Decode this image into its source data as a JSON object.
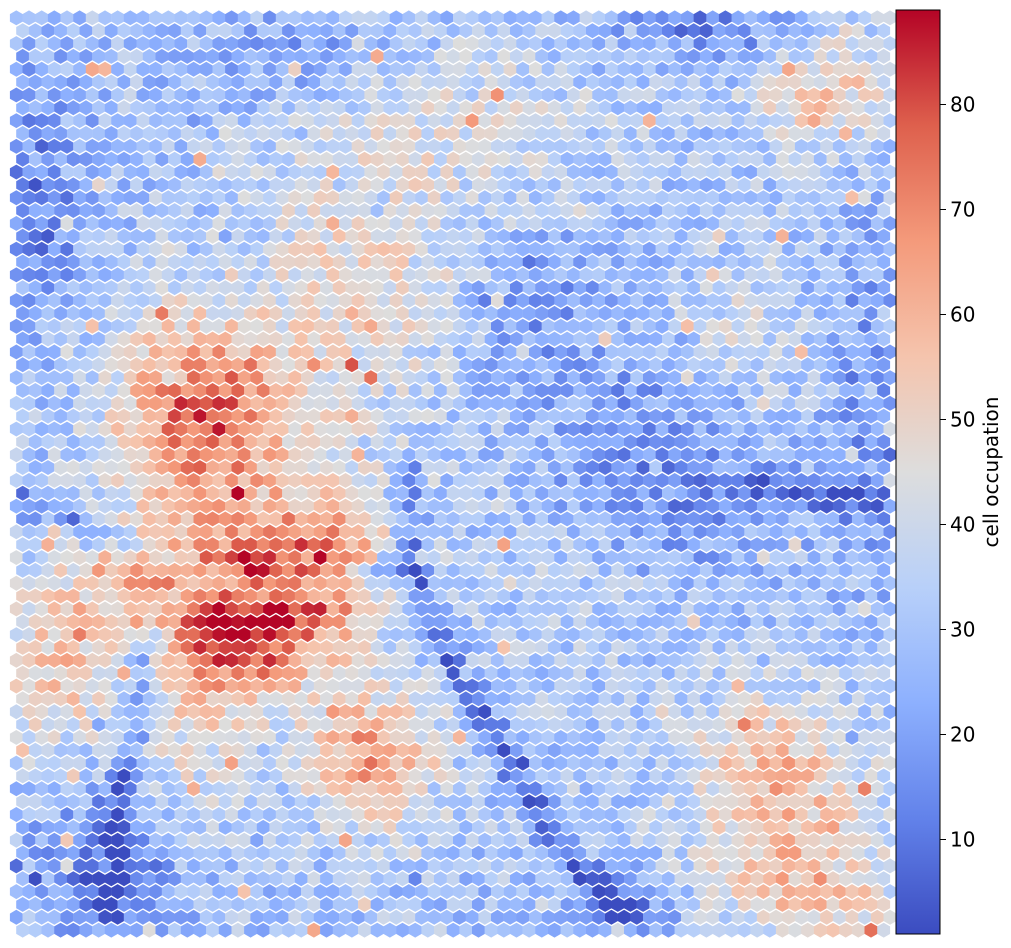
{
  "chart_data": {
    "type": "heatmap",
    "subtype": "hexagonal self-organizing map",
    "colormap": "coolwarm",
    "title": "",
    "xlabel": "",
    "ylabel": "",
    "grid": false,
    "legend": "none",
    "colorbar": {
      "label": "cell occupation",
      "ticks": [
        "10",
        "20",
        "30",
        "40",
        "50",
        "60",
        "70",
        "80"
      ],
      "range": [
        1,
        89
      ],
      "position": "right"
    },
    "grid_shape": {
      "rows": 72,
      "cols": 70
    },
    "hotspots": [
      {
        "cx": 0.22,
        "cy": 0.44,
        "sx": 0.07,
        "sy": 0.08,
        "v": 48
      },
      {
        "cx": 0.26,
        "cy": 0.66,
        "sx": 0.06,
        "sy": 0.06,
        "v": 58
      },
      {
        "cx": 0.36,
        "cy": 0.6,
        "sx": 0.05,
        "sy": 0.06,
        "v": 40
      },
      {
        "cx": 0.41,
        "cy": 0.81,
        "sx": 0.05,
        "sy": 0.05,
        "v": 38
      },
      {
        "cx": 0.15,
        "cy": 0.6,
        "sx": 0.05,
        "sy": 0.03,
        "v": 28
      },
      {
        "cx": 0.06,
        "cy": 0.7,
        "sx": 0.05,
        "sy": 0.07,
        "v": 25
      },
      {
        "cx": 0.4,
        "cy": 0.28,
        "sx": 0.08,
        "sy": 0.12,
        "v": 18
      },
      {
        "cx": 0.87,
        "cy": 0.84,
        "sx": 0.07,
        "sy": 0.07,
        "v": 30
      },
      {
        "cx": 0.93,
        "cy": 0.08,
        "sx": 0.06,
        "sy": 0.05,
        "v": 24
      },
      {
        "cx": 0.92,
        "cy": 0.96,
        "sx": 0.08,
        "sy": 0.04,
        "v": 20
      },
      {
        "cx": 0.55,
        "cy": 0.12,
        "sx": 0.1,
        "sy": 0.06,
        "v": 10
      },
      {
        "cx": 0.83,
        "cy": 0.35,
        "sx": 0.05,
        "sy": 0.06,
        "v": 12
      },
      {
        "cx": 0.2,
        "cy": 0.82,
        "sx": 0.04,
        "sy": 0.08,
        "v": 14
      },
      {
        "cx": 0.65,
        "cy": 0.6,
        "sx": 0.08,
        "sy": 0.08,
        "v": 6
      }
    ],
    "coldspots": [
      {
        "cx": 0.03,
        "cy": 0.2,
        "sx": 0.04,
        "sy": 0.1,
        "v": -18
      },
      {
        "cx": 0.12,
        "cy": 0.93,
        "sx": 0.06,
        "sy": 0.06,
        "v": -22
      },
      {
        "cx": 0.74,
        "cy": 0.5,
        "sx": 0.09,
        "sy": 0.08,
        "v": -18
      },
      {
        "cx": 0.6,
        "cy": 0.32,
        "sx": 0.06,
        "sy": 0.07,
        "v": -10
      },
      {
        "cx": 0.8,
        "cy": 0.02,
        "sx": 0.08,
        "sy": 0.03,
        "v": -18
      },
      {
        "cx": 0.32,
        "cy": 0.04,
        "sx": 0.08,
        "sy": 0.04,
        "v": -10
      },
      {
        "cx": 0.97,
        "cy": 0.4,
        "sx": 0.03,
        "sy": 0.15,
        "v": -12
      },
      {
        "cx": 0.7,
        "cy": 0.98,
        "sx": 0.04,
        "sy": 0.03,
        "v": -20
      }
    ],
    "ridges": [
      {
        "points": [
          [
            0.02,
            0.53
          ],
          [
            0.12,
            0.57
          ],
          [
            0.19,
            0.6
          ],
          [
            0.27,
            0.63
          ],
          [
            0.35,
            0.62
          ],
          [
            0.45,
            0.6
          ]
        ],
        "v": -22
      },
      {
        "points": [
          [
            0.45,
            0.5
          ],
          [
            0.46,
            0.6
          ],
          [
            0.5,
            0.7
          ],
          [
            0.56,
            0.8
          ],
          [
            0.62,
            0.9
          ],
          [
            0.7,
            0.98
          ]
        ],
        "v": -22
      },
      {
        "points": [
          [
            0.15,
            0.68
          ],
          [
            0.14,
            0.78
          ],
          [
            0.12,
            0.88
          ],
          [
            0.11,
            0.97
          ]
        ],
        "v": -20
      },
      {
        "points": [
          [
            0.86,
            0.51
          ],
          [
            0.9,
            0.52
          ],
          [
            0.98,
            0.53
          ]
        ],
        "v": -20
      },
      {
        "points": [
          [
            0.38,
            0.18
          ],
          [
            0.42,
            0.22
          ]
        ],
        "v": -10
      }
    ]
  }
}
